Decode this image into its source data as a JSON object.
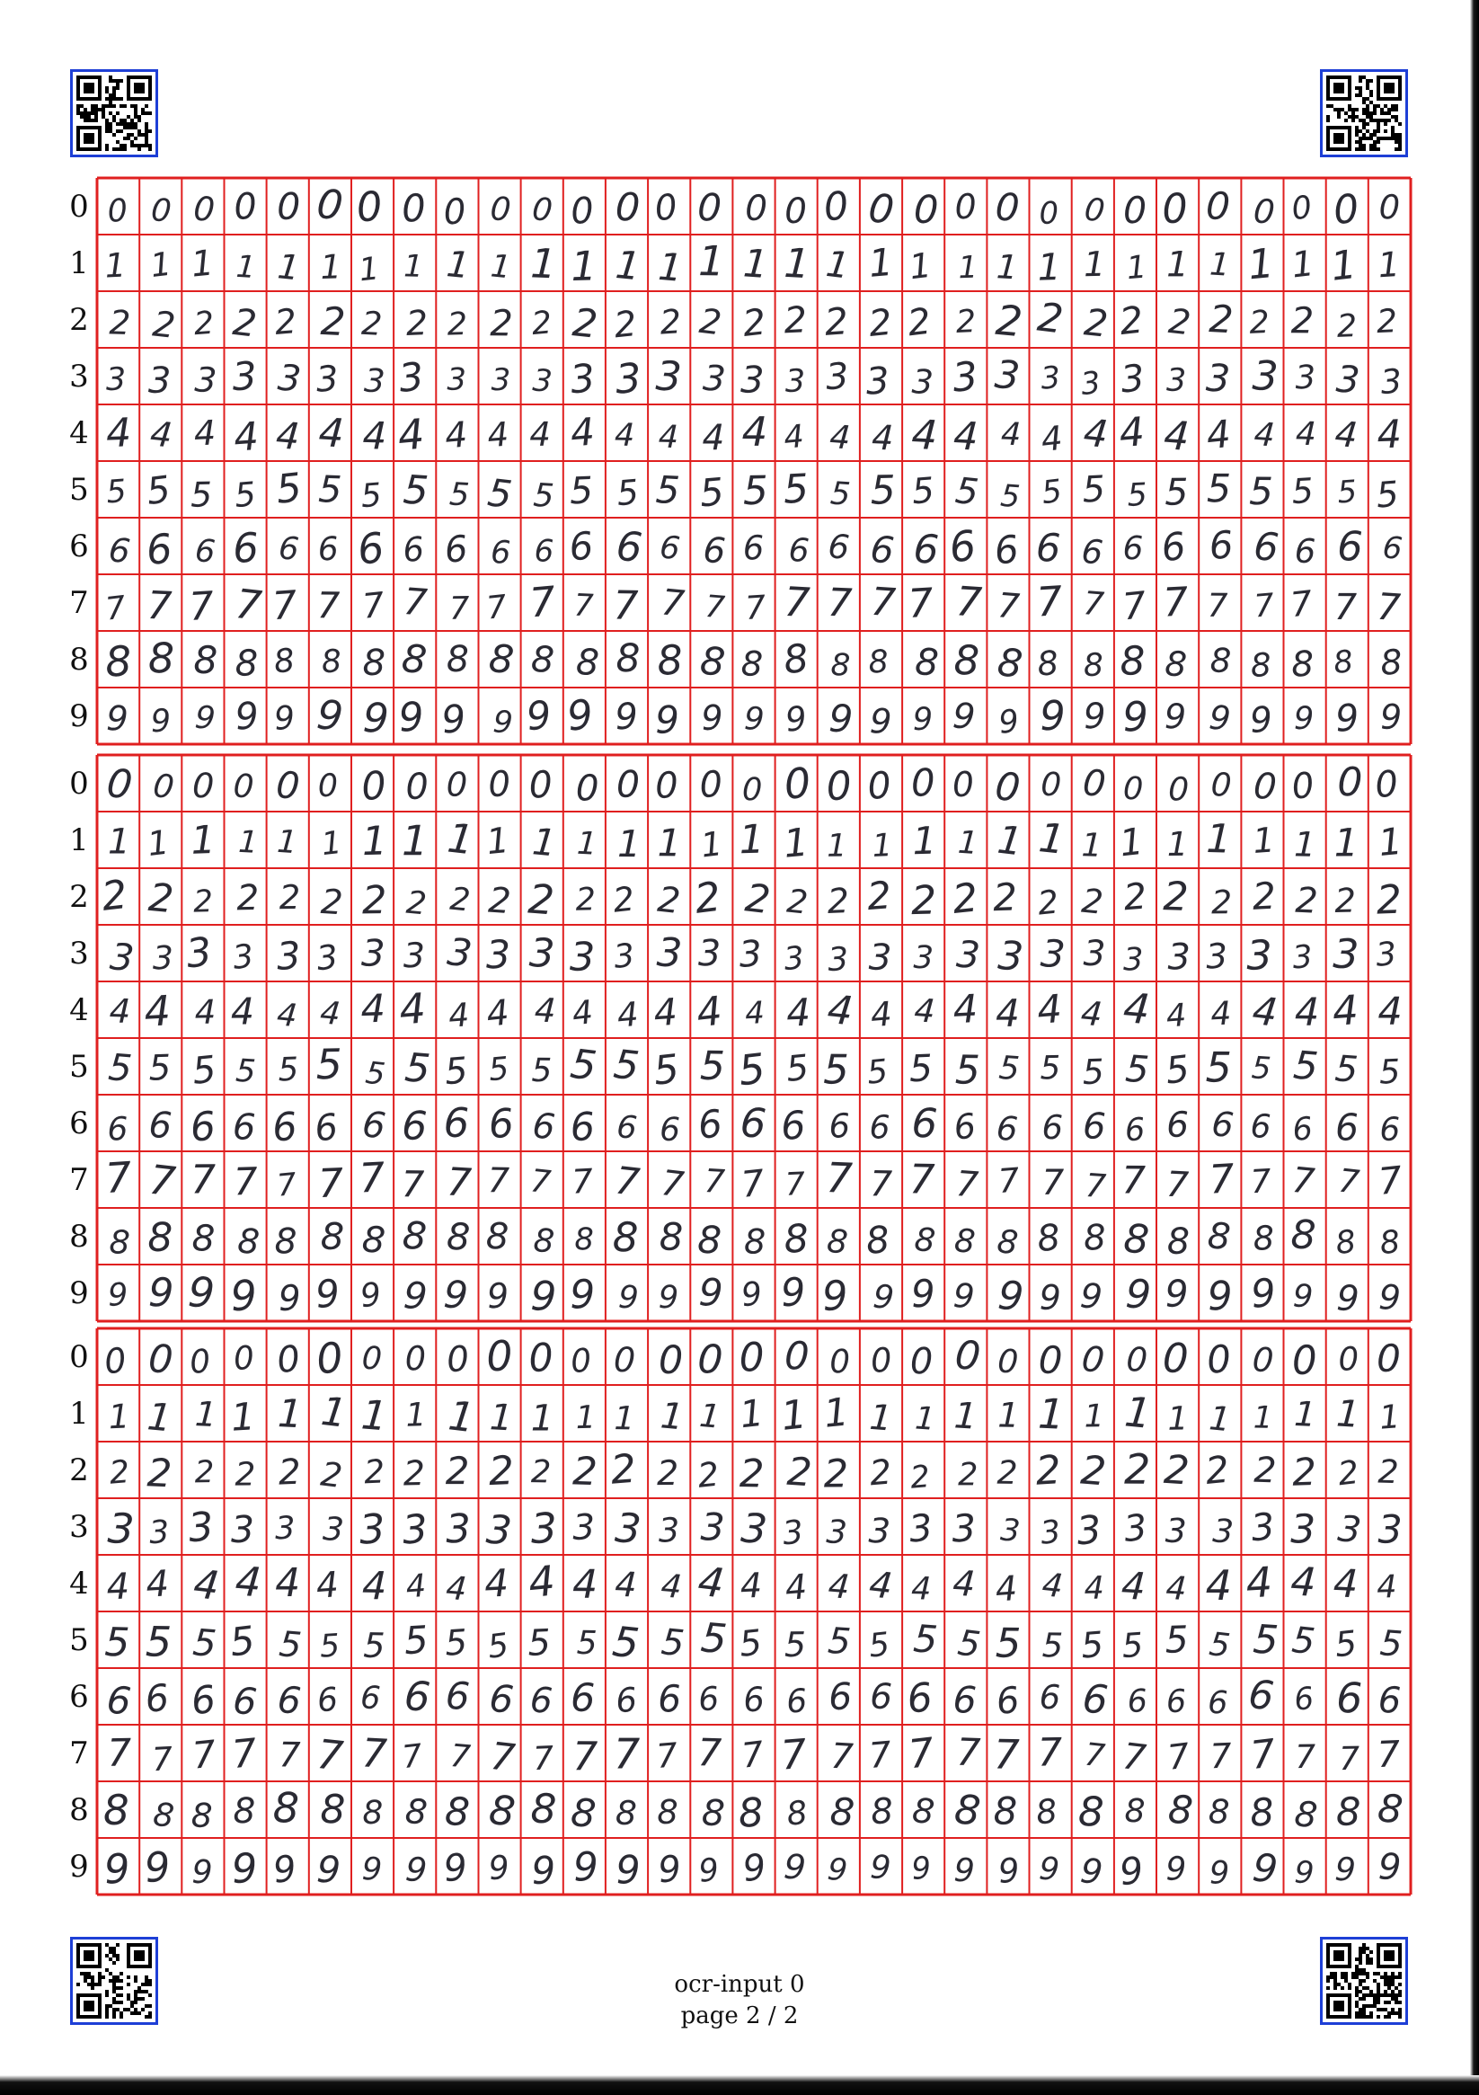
{
  "page": {
    "footer_line1": "ocr-input 0",
    "footer_line2": "page 2 / 2"
  },
  "grid": {
    "columns": 31,
    "row_labels": [
      "0",
      "1",
      "2",
      "3",
      "4",
      "5",
      "6",
      "7",
      "8",
      "9"
    ],
    "block_count": 3
  },
  "colors": {
    "grid_line": "#e01f1f",
    "qr_border": "#1e3fd6",
    "ink": "#2a2a33"
  },
  "icons": {
    "qr_top_left": "qr-code-icon",
    "qr_top_right": "qr-code-icon",
    "qr_bottom_left": "qr-code-icon",
    "qr_bottom_right": "qr-code-icon"
  }
}
